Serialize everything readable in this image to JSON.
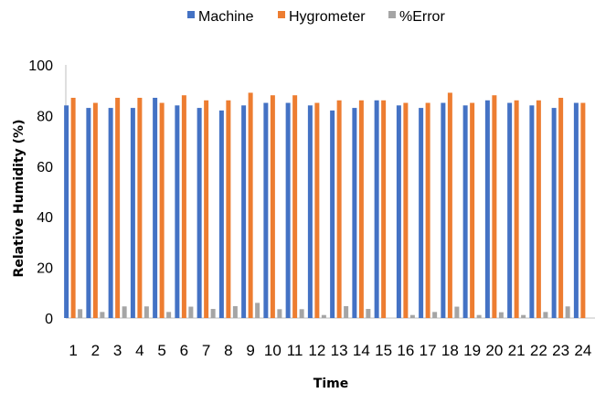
{
  "chart_data": {
    "type": "bar",
    "xlabel": "Time",
    "ylabel": "Relative Humidity (%)",
    "ylim": [
      0,
      100
    ],
    "yticks": [
      0,
      20,
      40,
      60,
      80,
      100
    ],
    "grid": false,
    "legend_position": "top",
    "categories": [
      "1",
      "2",
      "3",
      "4",
      "5",
      "6",
      "7",
      "8",
      "9",
      "10",
      "11",
      "12",
      "13",
      "14",
      "15",
      "16",
      "17",
      "18",
      "19",
      "20",
      "21",
      "22",
      "23",
      "24"
    ],
    "series": [
      {
        "name": "Machine",
        "color": "#4472C4",
        "values": [
          84,
          83,
          83,
          83,
          87,
          84,
          83,
          82,
          84,
          85,
          85,
          84,
          82,
          83,
          86,
          84,
          83,
          85,
          84,
          86,
          85,
          84,
          83,
          85
        ]
      },
      {
        "name": "Hygrometer",
        "color": "#ED7D31",
        "values": [
          87,
          85,
          87,
          87,
          85,
          88,
          86,
          86,
          89,
          88,
          88,
          85,
          86,
          86,
          86,
          85,
          85,
          89,
          85,
          88,
          86,
          86,
          87,
          85
        ]
      },
      {
        "name": "%Error",
        "color": "#A5A5A5",
        "values": [
          3.5,
          2.4,
          4.6,
          4.6,
          2.4,
          4.5,
          3.6,
          4.7,
          6,
          3.5,
          3.5,
          1.2,
          4.7,
          3.6,
          0,
          1.2,
          2.4,
          4.5,
          1.2,
          2.3,
          1.2,
          2.4,
          4.6,
          0
        ]
      }
    ]
  }
}
